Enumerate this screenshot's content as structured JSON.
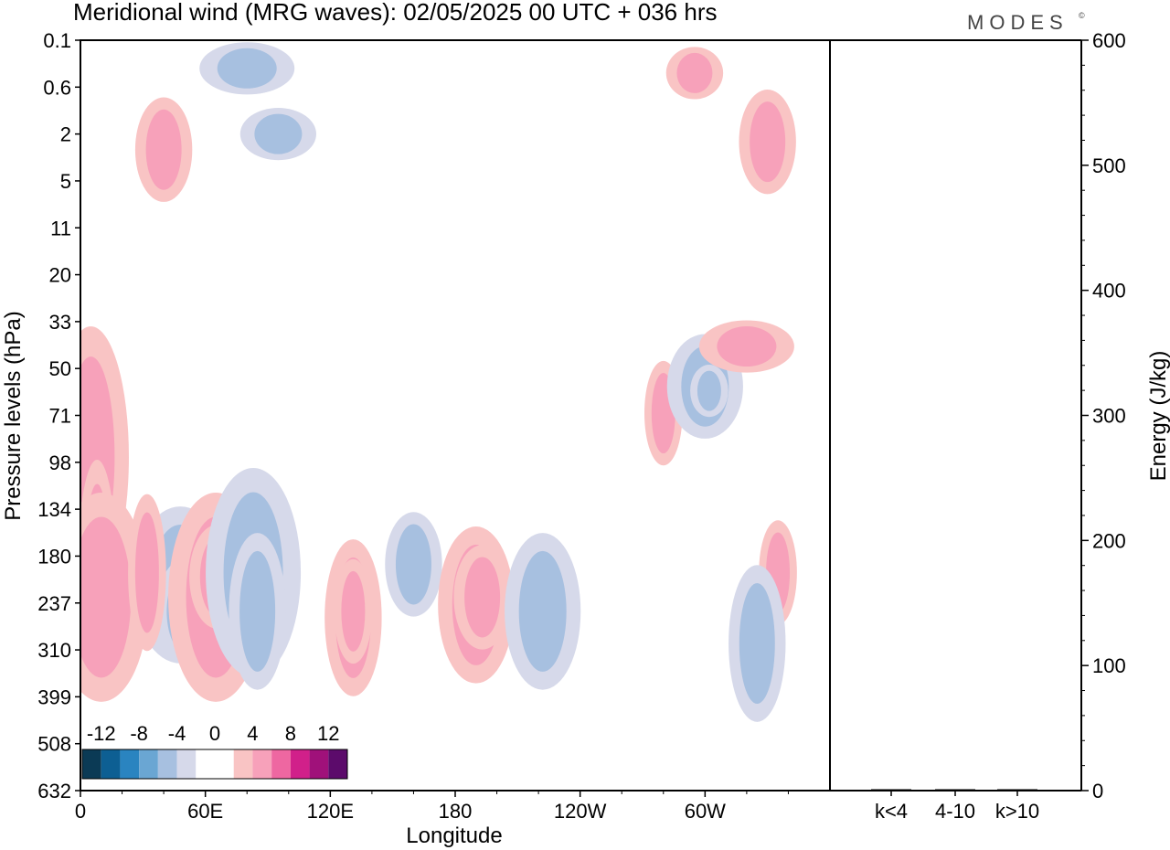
{
  "title": "Meridional wind (MRG waves):  02/05/2025  00 UTC  + 036 hrs",
  "brand": "MODES",
  "brand_mark": "©",
  "chart_data": [
    {
      "type": "heatmap",
      "title": "Meridional wind (MRG waves):  02/05/2025  00 UTC  + 036 hrs",
      "xlabel": "Longitude",
      "ylabel": "Pressure levels (hPa)",
      "x_ticks": [
        "0",
        "60E",
        "120E",
        "180",
        "120W",
        "60W"
      ],
      "y_ticks": [
        "0.1",
        "0.6",
        "2",
        "5",
        "11",
        "20",
        "33",
        "50",
        "71",
        "98",
        "134",
        "180",
        "237",
        "310",
        "399",
        "508",
        "632"
      ],
      "colorbar": {
        "labels": [
          "-12",
          "-8",
          "-4",
          "0",
          "4",
          "8",
          "12"
        ],
        "colors": [
          "#0b3a55",
          "#0d5f93",
          "#2a84c0",
          "#6aa6d3",
          "#a7c0e0",
          "#d6d9ea",
          "#ffffff",
          "#ffffff",
          "#f9c4c4",
          "#f7a1ba",
          "#ee67a1",
          "#d1208a",
          "#a0117a",
          "#5c0b6b"
        ]
      },
      "contours": [
        {
          "level": 4,
          "sign": "pos",
          "lon": 5,
          "p": 95,
          "r": 13,
          "w": 4,
          "h": 5
        },
        {
          "level": 8,
          "sign": "pos",
          "lon": 8,
          "p": 190,
          "r": 12,
          "w": 2,
          "h": 4
        },
        {
          "level": 4,
          "sign": "pos",
          "lon": 10,
          "p": 230,
          "r": 13,
          "w": 5,
          "h": 4
        },
        {
          "level": 4,
          "sign": "neg",
          "lon": 48,
          "p": 215,
          "r": 13,
          "w": 5,
          "h": 3
        },
        {
          "level": 8,
          "sign": "neg",
          "lon": 50,
          "p": 250,
          "r": 13,
          "w": 3,
          "h": 2
        },
        {
          "level": 4,
          "sign": "pos",
          "lon": 32,
          "p": 200,
          "r": 12,
          "w": 2,
          "h": 3
        },
        {
          "level": 4,
          "sign": "pos",
          "lon": 65,
          "p": 230,
          "r": 13,
          "w": 5,
          "h": 4
        },
        {
          "level": 8,
          "sign": "pos",
          "lon": 66,
          "p": 205,
          "r": 12,
          "w": 3,
          "h": 2
        },
        {
          "level": 4,
          "sign": "neg",
          "lon": 83,
          "p": 200,
          "r": 13,
          "w": 5,
          "h": 4
        },
        {
          "level": 8,
          "sign": "neg",
          "lon": 85,
          "p": 250,
          "r": 12,
          "w": 3,
          "h": 3
        },
        {
          "level": 4,
          "sign": "pos",
          "lon": 131,
          "p": 260,
          "r": 13,
          "w": 3,
          "h": 3
        },
        {
          "level": 8,
          "sign": "pos",
          "lon": 131,
          "p": 250,
          "r": 12,
          "w": 2,
          "h": 2
        },
        {
          "level": 4,
          "sign": "neg",
          "lon": 160,
          "p": 190,
          "r": 12,
          "w": 3,
          "h": 2
        },
        {
          "level": 4,
          "sign": "pos",
          "lon": 190,
          "p": 240,
          "r": 13,
          "w": 4,
          "h": 3
        },
        {
          "level": 8,
          "sign": "pos",
          "lon": 193,
          "p": 230,
          "r": 12,
          "w": 3,
          "h": 2
        },
        {
          "level": 4,
          "sign": "neg",
          "lon": 222,
          "p": 250,
          "r": 13,
          "w": 4,
          "h": 3
        },
        {
          "level": 4,
          "sign": "pos",
          "lon": 280,
          "p": 70,
          "r": 12,
          "w": 2,
          "h": 2
        },
        {
          "level": 4,
          "sign": "neg",
          "lon": 300,
          "p": 58,
          "r": 12,
          "w": 4,
          "h": 2
        },
        {
          "level": 8,
          "sign": "neg",
          "lon": 302,
          "p": 60,
          "r": 12,
          "w": 2,
          "h": 1
        },
        {
          "level": 4,
          "sign": "pos",
          "lon": 320,
          "p": 42,
          "r": 12,
          "w": 5,
          "h": 1
        },
        {
          "level": 4,
          "sign": "pos",
          "lon": 335,
          "p": 200,
          "r": 12,
          "w": 2,
          "h": 2
        },
        {
          "level": 4,
          "sign": "neg",
          "lon": 325,
          "p": 300,
          "r": 13,
          "w": 3,
          "h": 3
        },
        {
          "level": 4,
          "sign": "pos",
          "lon": 40,
          "p": 3,
          "r": 12,
          "w": 3,
          "h": 2
        },
        {
          "level": 4,
          "sign": "neg",
          "lon": 95,
          "p": 2,
          "r": 12,
          "w": 4,
          "h": 1
        },
        {
          "level": 4,
          "sign": "neg",
          "lon": 80,
          "p": 0.4,
          "r": 12,
          "w": 5,
          "h": 1
        },
        {
          "level": 4,
          "sign": "pos",
          "lon": 295,
          "p": 0.45,
          "r": 12,
          "w": 3,
          "h": 1
        },
        {
          "level": 4,
          "sign": "pos",
          "lon": 330,
          "p": 2.5,
          "r": 12,
          "w": 3,
          "h": 2
        }
      ]
    },
    {
      "type": "bar",
      "categories": [
        "k<4",
        "4-10",
        "k>10"
      ],
      "values": [
        0,
        1,
        0
      ],
      "ylabel": "Energy (J/kg)",
      "ylim": [
        0,
        600
      ],
      "y_ticks": [
        "0",
        "100",
        "200",
        "300",
        "400",
        "500",
        "600"
      ]
    }
  ]
}
